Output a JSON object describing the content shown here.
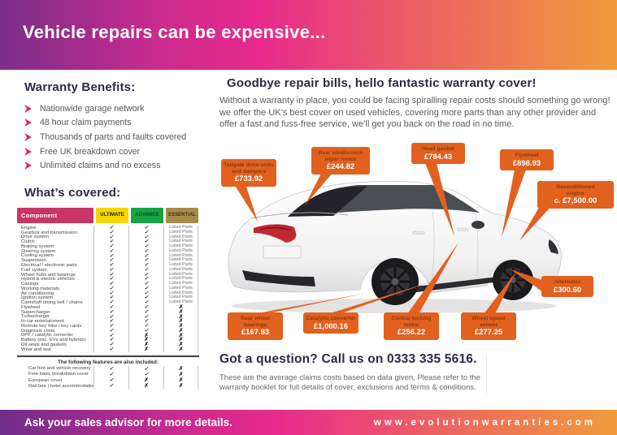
{
  "banner": {
    "title": "Vehicle repairs can be expensive..."
  },
  "benefits": {
    "heading": "Warranty Benefits:",
    "items": [
      "Nationwide garage network",
      "48 hour claim payments",
      "Thousands of parts and faults covered",
      "Free UK breakdown cover",
      "Unlimited claims and no excess"
    ]
  },
  "covered": {
    "heading": "What’s covered:",
    "columns": [
      "Component",
      "ULTIMATE",
      "ADVANCE",
      "ESSENTIAL"
    ],
    "rows": [
      [
        "Engine",
        "✓",
        "✓",
        "Listed Parts"
      ],
      [
        "Gearbox and transmission",
        "✓",
        "✓",
        "Listed Parts"
      ],
      [
        "Drive system",
        "✓",
        "✓",
        "Listed Parts"
      ],
      [
        "Clutch",
        "✓",
        "✓",
        "Listed Parts"
      ],
      [
        "Braking system",
        "✓",
        "✓",
        "Listed Parts"
      ],
      [
        "Steering system",
        "✓",
        "✓",
        "Listed Parts"
      ],
      [
        "Cooling system",
        "✓",
        "✓",
        "Listed Parts"
      ],
      [
        "Suspension",
        "✓",
        "✓",
        "Listed Parts"
      ],
      [
        "Electrical / electronic parts",
        "✓",
        "✓",
        "Listed Parts"
      ],
      [
        "Fuel system",
        "✓",
        "✓",
        "Listed Parts"
      ],
      [
        "Wheel hubs and bearings",
        "✓",
        "✓",
        "Listed Parts"
      ],
      [
        "Hybrid & electric vehicles",
        "✓",
        "✓",
        "Listed Parts"
      ],
      [
        "Casings",
        "✓",
        "✓",
        "Listed Parts"
      ],
      [
        "Working materials",
        "✓",
        "✓",
        "Listed Parts"
      ],
      [
        "Air conditioning",
        "✓",
        "✓",
        "Listed Parts"
      ],
      [
        "Ignition system",
        "✓",
        "✓",
        "Listed Parts"
      ],
      [
        "Camshaft timing belt / chains",
        "✓",
        "✓",
        "Listed Parts"
      ],
      [
        "Flywheel",
        "✓",
        "✓",
        "✗"
      ],
      [
        "Supercharger",
        "✓",
        "✓",
        "✗"
      ],
      [
        "Turbocharger",
        "✓",
        "✓",
        "✗"
      ],
      [
        "In-car entertainment",
        "✓",
        "✓",
        "✗"
      ],
      [
        "Remote key fobs / key cards",
        "✓",
        "✓",
        "✗"
      ],
      [
        "Diagnosis costs",
        "✓",
        "✓",
        "✗"
      ],
      [
        "DPF / catalytic converter",
        "✓",
        "✗",
        "✗"
      ],
      [
        "Battery (exc. EVs and hybrids)",
        "✓",
        "✗",
        "✗"
      ],
      [
        "Oil seals and gaskets",
        "✓",
        "✗",
        "✗"
      ],
      [
        "Wear and tear",
        "✓",
        "✗",
        "✗"
      ]
    ],
    "extra_heading": "The following features are also included:",
    "extra_rows": [
      [
        "Car hire and vehicle recovery",
        "✓",
        "✓",
        "✗"
      ],
      [
        "Free basic breakdown cover",
        "✓",
        "✓",
        "✗"
      ],
      [
        "European cover",
        "✓",
        "✗",
        "✗"
      ],
      [
        "Rail fare / hotel accommodation",
        "✓",
        "✗",
        "✗"
      ]
    ]
  },
  "intro": {
    "heading": "Goodbye repair bills, hello fantastic warranty cover!",
    "body": "Without a warranty in place, you could be facing spiralling repair costs should something go wrong! we offer the UK’s best cover on used vehicles, covering more parts than any other provider and offer a fast and fuss-free service, we’ll get you back on the road in no time."
  },
  "callouts": [
    {
      "label": "Tailgate drive units and dampers",
      "price": "£733.92"
    },
    {
      "label": "Rear windscreen wiper motor",
      "price": "£244.82"
    },
    {
      "label": "Head gasket",
      "price": "£784.43"
    },
    {
      "label": "Flywheel",
      "price": "£898.93"
    },
    {
      "label": "Reconditioned engine",
      "price": "c. £7,500.00"
    },
    {
      "label": "Alternator",
      "price": "£300.60"
    },
    {
      "label": "Rear wheel bearings",
      "price": "£167.83"
    },
    {
      "label": "Catalytic converter",
      "price": "£1,000.16"
    },
    {
      "label": "Central locking motor",
      "price": "£256.22"
    },
    {
      "label": "Wheel speed sensor",
      "price": "£277.25"
    }
  ],
  "contact": {
    "heading": "Got a question? Call us on 0333 335 5616.",
    "note": "These are the average claims costs based on data given, Please refer to the warranty booklet for full details of cover, exclusions and terms & conditions."
  },
  "footer": {
    "left": "Ask your sales advisor for more details.",
    "right": "www.evolutionwarranties.com"
  },
  "colors": {
    "gradient_start": "#7b2e8a",
    "gradient_mid": "#e82a8c",
    "gradient_end": "#f09c3c",
    "callout_orange": "#e2611f",
    "component_header": "#c93566",
    "ultimate": "#f6d600",
    "advance": "#17a344",
    "essential": "#a78b4b",
    "chevron_pink": "#d7246d",
    "heading_navy": "#2b2a45"
  }
}
